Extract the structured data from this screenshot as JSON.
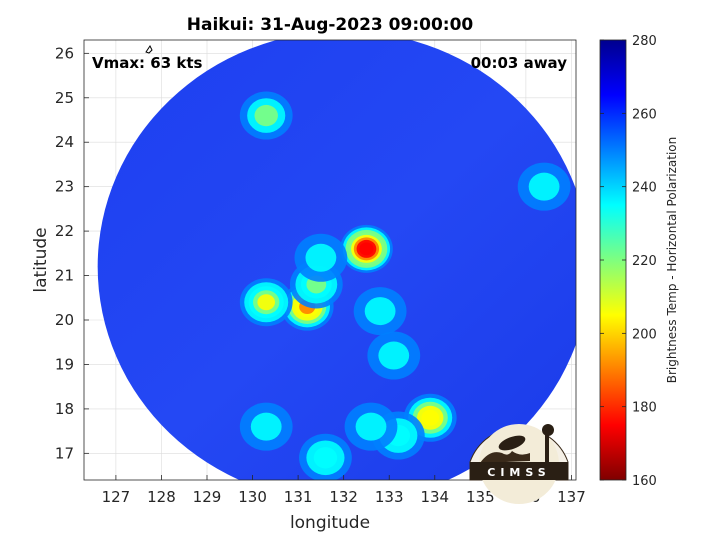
{
  "chart_data": {
    "type": "heatmap",
    "title": "Haikui: 31-Aug-2023 09:00:00",
    "xlabel": "longitude",
    "ylabel": "latitude",
    "xlim": [
      126.3,
      137.1
    ],
    "ylim": [
      16.4,
      26.3
    ],
    "xticks": [
      127,
      128,
      129,
      130,
      131,
      132,
      133,
      134,
      135,
      136,
      137
    ],
    "yticks": [
      17,
      18,
      19,
      20,
      21,
      22,
      23,
      24,
      25,
      26
    ],
    "grid": true,
    "annotations": {
      "vmax": "Vmax: 63 kts",
      "time_away": "00:03 away"
    },
    "swath": {
      "center_lon": 132.0,
      "center_lat": 21.2,
      "radius_lon": 5.4,
      "radius_lat": 5.3,
      "background_value": 262
    },
    "colorbar": {
      "label": "Brightness Temp - Horizontal Polarization",
      "range": [
        160,
        280
      ],
      "ticks": [
        160,
        180,
        200,
        220,
        240,
        260,
        280
      ],
      "colormap": [
        "#7f0000",
        "#ff0000",
        "#ff7f00",
        "#ffff00",
        "#7fff7f",
        "#00ffff",
        "#007fff",
        "#0000ff",
        "#00008f"
      ]
    },
    "features": [
      {
        "lon": 132.5,
        "lat": 21.6,
        "value": 168
      },
      {
        "lon": 131.2,
        "lat": 20.3,
        "value": 185
      },
      {
        "lon": 130.3,
        "lat": 20.4,
        "value": 205
      },
      {
        "lon": 131.4,
        "lat": 20.8,
        "value": 220
      },
      {
        "lon": 131.5,
        "lat": 21.4,
        "value": 235
      },
      {
        "lon": 130.3,
        "lat": 24.6,
        "value": 225
      },
      {
        "lon": 133.9,
        "lat": 17.8,
        "value": 200
      },
      {
        "lon": 133.2,
        "lat": 17.4,
        "value": 228
      },
      {
        "lon": 132.6,
        "lat": 17.6,
        "value": 235
      },
      {
        "lon": 131.6,
        "lat": 16.9,
        "value": 230
      },
      {
        "lon": 130.3,
        "lat": 17.6,
        "value": 240
      },
      {
        "lon": 136.4,
        "lat": 23.0,
        "value": 235
      },
      {
        "lon": 132.8,
        "lat": 20.2,
        "value": 238
      },
      {
        "lon": 133.1,
        "lat": 19.2,
        "value": 240
      }
    ]
  },
  "logo": {
    "text": "CIMSS"
  }
}
